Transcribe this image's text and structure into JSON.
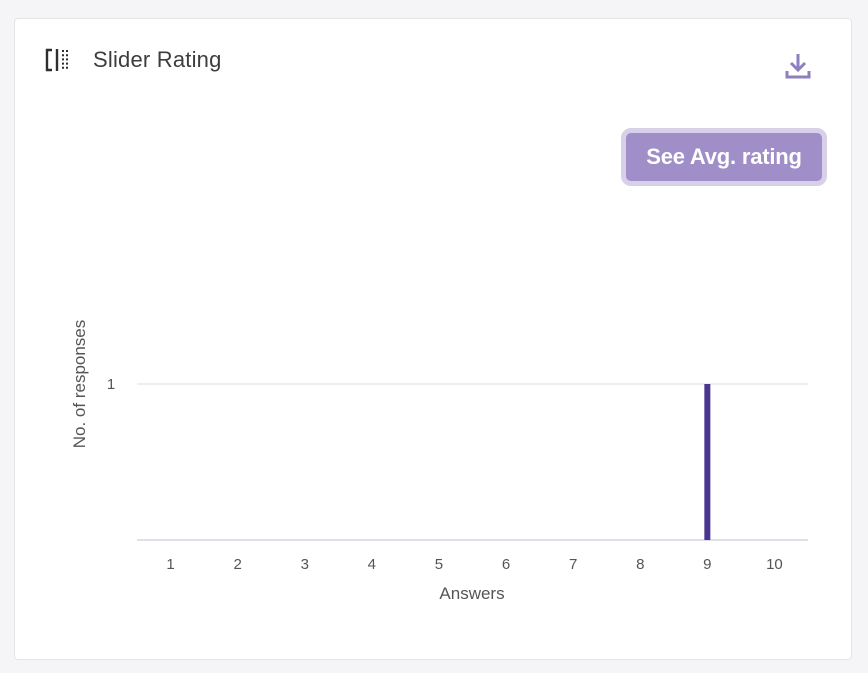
{
  "card": {
    "title": "Slider Rating",
    "title_icon": "slider-rating-icon",
    "download_icon": "download-icon",
    "avg_button_label": "See Avg. rating"
  },
  "colors": {
    "bar": "#4a3590",
    "button_bg": "#9f8ec7",
    "button_border": "#d8d0e8",
    "gridline": "#dcdde3",
    "icon_purple": "#8f7fbf"
  },
  "chart_data": {
    "type": "bar",
    "categories": [
      "1",
      "2",
      "3",
      "4",
      "5",
      "6",
      "7",
      "8",
      "9",
      "10"
    ],
    "values": [
      0,
      0,
      0,
      0,
      0,
      0,
      0,
      0,
      1,
      0
    ],
    "xlabel": "Answers",
    "ylabel": "No. of responses",
    "yticks": [
      "1"
    ],
    "ylim": [
      0,
      1
    ],
    "grid": true
  }
}
